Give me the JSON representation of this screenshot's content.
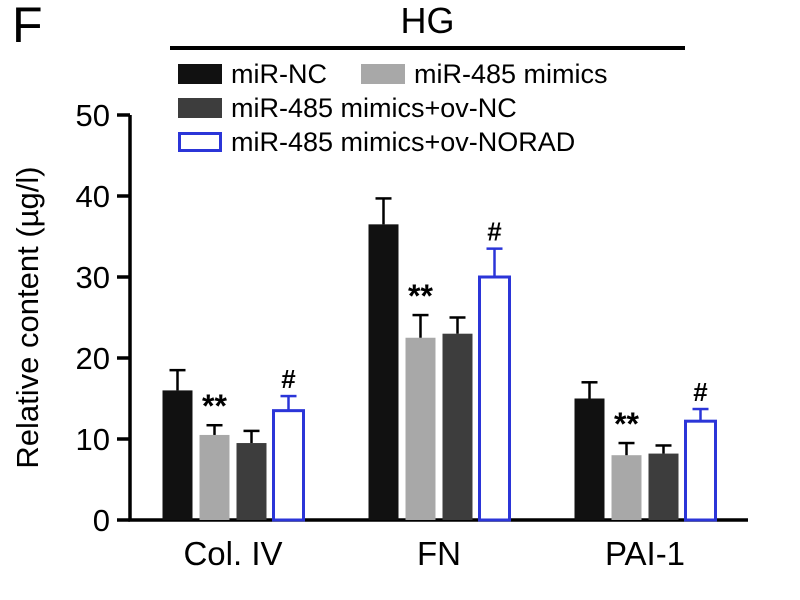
{
  "panel_label": "F",
  "condition_label": "HG",
  "legend": {
    "rows": [
      [
        0,
        1
      ],
      [
        2
      ],
      [
        3
      ]
    ],
    "entries": [
      {
        "label": "miR-NC",
        "color": "#111111",
        "fill": "solid"
      },
      {
        "label": "miR-485 mimics",
        "color": "#a8a8a8",
        "fill": "solid"
      },
      {
        "label": "miR-485 mimics+ov-NC",
        "color": "#3d3d3d",
        "fill": "solid"
      },
      {
        "label": "miR-485 mimics+ov-NORAD",
        "color": "#2b35d8",
        "fill": "outline"
      }
    ]
  },
  "chart_data": {
    "type": "bar",
    "title": "HG",
    "xlabel": "",
    "ylabel": "Relative content (µg/l)",
    "ylim": [
      0,
      50
    ],
    "yticks": [
      0,
      10,
      20,
      30,
      40,
      50
    ],
    "grid": false,
    "legend_position": "top",
    "categories": [
      "Col. IV",
      "FN",
      "PAI-1"
    ],
    "series": [
      {
        "name": "miR-NC",
        "color": "#111111",
        "fill": "solid",
        "values": [
          16,
          36.5,
          15
        ],
        "errors": [
          2.5,
          3.2,
          2
        ],
        "annotations": [
          "",
          "",
          ""
        ]
      },
      {
        "name": "miR-485 mimics",
        "color": "#a8a8a8",
        "fill": "solid",
        "values": [
          10.5,
          22.5,
          8
        ],
        "errors": [
          1.2,
          2.8,
          1.5
        ],
        "annotations": [
          "**",
          "**",
          "**"
        ]
      },
      {
        "name": "miR-485 mimics+ov-NC",
        "color": "#3d3d3d",
        "fill": "solid",
        "values": [
          9.5,
          23,
          8.2
        ],
        "errors": [
          1.5,
          2,
          1
        ],
        "annotations": [
          "",
          "",
          ""
        ]
      },
      {
        "name": "miR-485 mimics+ov-NORAD",
        "color": "#2b35d8",
        "fill": "outline",
        "values": [
          13.5,
          30,
          12.2
        ],
        "errors": [
          1.8,
          3.5,
          1.5
        ],
        "annotations": [
          "#",
          "#",
          "#"
        ]
      }
    ]
  }
}
